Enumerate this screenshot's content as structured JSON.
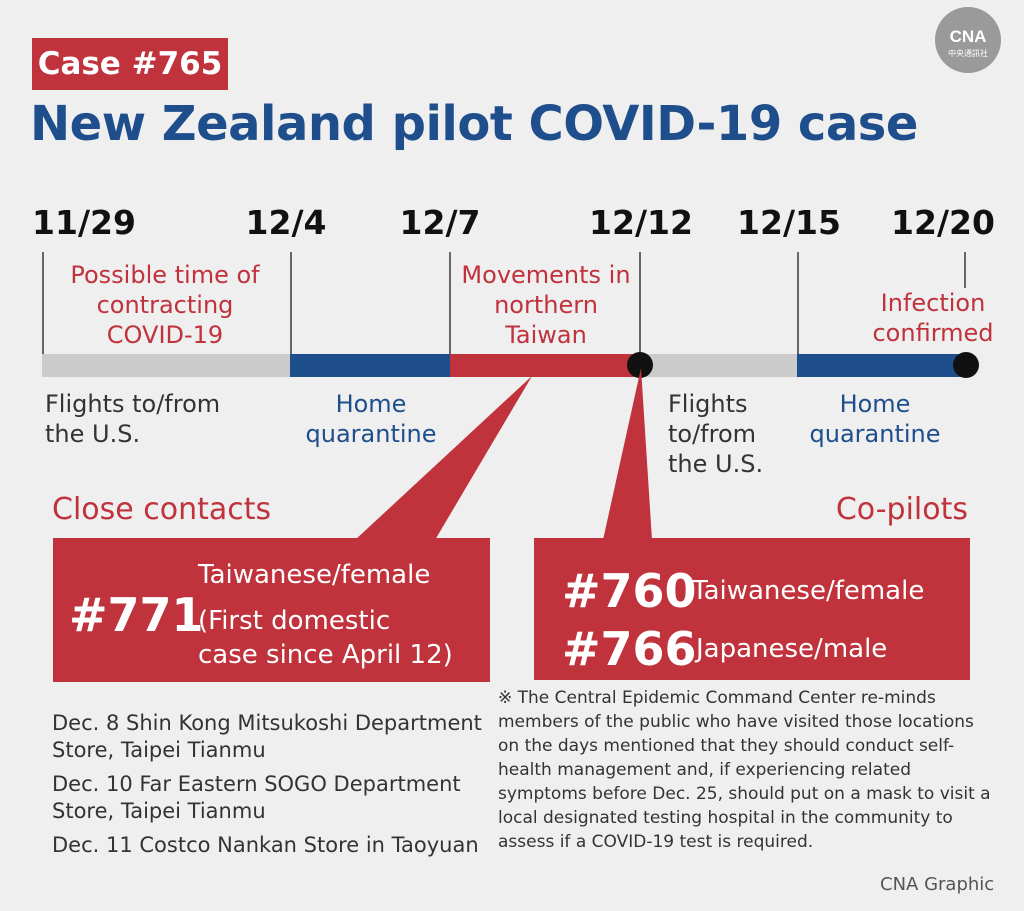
{
  "case_tag": "Case #765",
  "title": "New Zealand pilot COVID-19 case",
  "logo": {
    "text": "CNA",
    "subtext": "中央通訊社"
  },
  "timeline": {
    "dates": [
      "11/29",
      "12/4",
      "12/7",
      "12/12",
      "12/15",
      "12/20"
    ],
    "upper_labels": {
      "possible_contracting": "Possible time of contracting COVID-19",
      "movements": "Movements in northern Taiwan",
      "infection_confirmed": "Infection confirmed"
    },
    "segments": {
      "flights_1": "Flights to/from the U.S.",
      "home_1": "Home quarantine",
      "flights_2": "Flights to/from the U.S.",
      "home_2": "Home quarantine"
    },
    "colors": {
      "gray": "#cbcbcb",
      "blue": "#1f4e8c",
      "red": "#c0323c"
    }
  },
  "close_contacts": {
    "heading": "Close contacts",
    "case_number": "#771",
    "line1": "Taiwanese/female",
    "line2": "(First domestic",
    "line3": "case since April 12)",
    "locations": [
      "Dec. 8 Shin Kong Mitsukoshi Department Store, Taipei Tianmu",
      "Dec. 10 Far Eastern SOGO Department Store, Taipei Tianmu",
      "Dec. 11 Costco Nankan Store in Taoyuan"
    ]
  },
  "co_pilots": {
    "heading": "Co-pilots",
    "case_a": "#760",
    "desc_a": "Taiwanese/female",
    "case_b": "#766",
    "desc_b": "Japanese/male"
  },
  "note": "※ The Central Epidemic Command Center re-minds members of the public who have visited those locations on the days mentioned that they should conduct self-health management and, if experiencing related symptoms before Dec. 25, should put on a mask to visit a local designated testing hospital in the community to assess if a COVID-19 test is required.",
  "credit": "CNA Graphic"
}
